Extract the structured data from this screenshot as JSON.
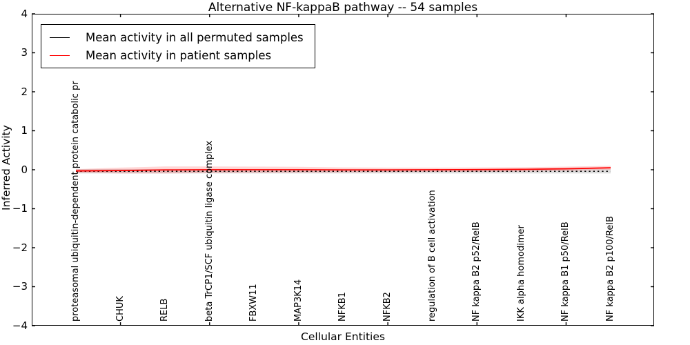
{
  "title": "Alternative NF-kappaB pathway -- 54 samples",
  "axes": {
    "ylabel": "Inferred Activity",
    "xlabel": "Cellular Entities",
    "yticks": [
      "4",
      "3",
      "2",
      "1",
      "0",
      "−1",
      "−2",
      "−3",
      "−4"
    ],
    "ytick_values": [
      4,
      3,
      2,
      1,
      0,
      -1,
      -2,
      -3,
      -4
    ],
    "xtick_entity_indices": [
      1,
      3,
      5,
      7,
      9,
      11
    ]
  },
  "legend": {
    "items": [
      {
        "label": "Mean activity in all permuted samples",
        "color": "#000000"
      },
      {
        "label": "Mean activity in patient samples",
        "color": "#ff0000"
      }
    ]
  },
  "chart_data": {
    "type": "line",
    "title": "Alternative NF-kappaB pathway -- 54 samples",
    "xlabel": "Cellular Entities",
    "ylabel": "Inferred Activity",
    "ylim": [
      -4,
      4
    ],
    "grid": false,
    "legend_position": "upper left",
    "categories": [
      "proteasomal ubiquitin-dependent protein catabolic pr",
      "CHUK",
      "RELB",
      "beta TrCP1/SCF ubiquitin ligase complex",
      "FBXW11",
      "MAP3K14",
      "NFKB1",
      "NFKB2",
      "regulation of B cell activation",
      "NF kappa B2 p52/RelB",
      "IKK alpha homodimer",
      "NF kappa B1 p50/RelB",
      "NF kappa B2 p100/RelB"
    ],
    "series": [
      {
        "name": "Mean activity in all permuted samples",
        "color": "#000000",
        "line_style": "dotted",
        "values": [
          -0.04,
          -0.04,
          -0.04,
          -0.04,
          -0.04,
          -0.04,
          -0.04,
          -0.04,
          -0.04,
          -0.04,
          -0.04,
          -0.04,
          -0.04
        ],
        "band_halfwidth": [
          0.055,
          0.055,
          0.055,
          0.055,
          0.055,
          0.055,
          0.055,
          0.055,
          0.055,
          0.055,
          0.055,
          0.055,
          0.055
        ],
        "band_color": "rgba(0,0,0,0.13)"
      },
      {
        "name": "Mean activity in patient samples",
        "color": "#ff0000",
        "line_style": "solid",
        "values": [
          -0.03,
          -0.02,
          -0.005,
          0.0,
          0.0,
          0.0,
          -0.005,
          -0.005,
          0.0,
          0.005,
          0.01,
          0.025,
          0.05
        ],
        "band_halfwidth": [
          0.045,
          0.075,
          0.09,
          0.085,
          0.08,
          0.075,
          0.065,
          0.06,
          0.055,
          0.055,
          0.055,
          0.055,
          0.05
        ],
        "band_color": "rgba(255,0,0,0.16)"
      }
    ]
  }
}
